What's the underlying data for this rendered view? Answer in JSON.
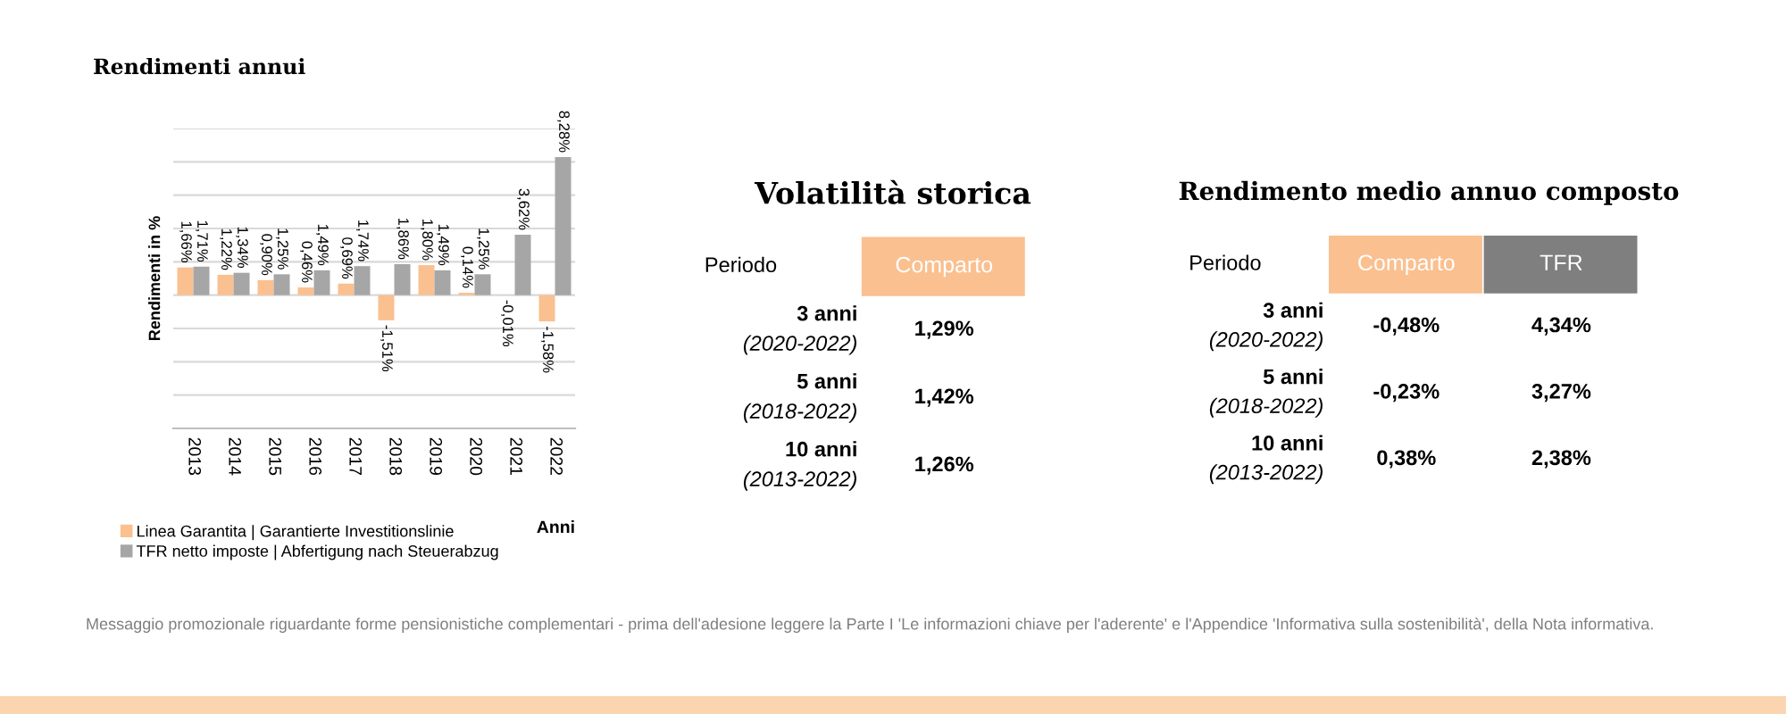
{
  "chart_data": [
    {
      "type": "bar",
      "title": "Rendimenti annui",
      "xlabel": "Anni",
      "ylabel": "Rendimenti in %",
      "categories": [
        "2013",
        "2014",
        "2015",
        "2016",
        "2017",
        "2018",
        "2019",
        "2020",
        "2021",
        "2022"
      ],
      "series": [
        {
          "name": "Linea Garantita | Garantierte Investitionslinie",
          "color": "#fac090",
          "values": [
            1.66,
            1.22,
            0.9,
            0.46,
            0.69,
            -1.51,
            1.8,
            0.14,
            -0.01,
            -1.58
          ],
          "value_labels": [
            "1,66%",
            "1,22%",
            "0,90%",
            "0,46%",
            "0,69%",
            "-1,51%",
            "1,80%",
            "0,14%",
            "-0,01%",
            "-1,58%"
          ]
        },
        {
          "name": "TFR netto imposte | Abfertigung nach Steuerabzug",
          "color": "#a6a6a6",
          "values": [
            1.71,
            1.34,
            1.25,
            1.49,
            1.74,
            1.86,
            1.49,
            1.25,
            3.62,
            8.28
          ],
          "value_labels": [
            "1,71%",
            "1,34%",
            "1,25%",
            "1,49%",
            "1,74%",
            "1,86%",
            "1,49%",
            "1,25%",
            "3,62%",
            "8,28%"
          ]
        }
      ],
      "ylim": [
        -8,
        10
      ],
      "yticks": [
        {
          "value": -8,
          "label": null
        },
        {
          "value": -6,
          "label": null
        },
        {
          "value": -4,
          "label": null
        },
        {
          "value": -2,
          "label": null
        },
        {
          "value": 0,
          "label": null
        },
        {
          "value": 2,
          "label": null
        },
        {
          "value": 4,
          "label": null
        },
        {
          "value": 6,
          "label": null
        },
        {
          "value": 8,
          "label": null
        },
        {
          "value": 10,
          "label": null
        }
      ],
      "grid": "y",
      "legend": "bottom",
      "tick_labels": "x",
      "annotations": [
        "Messaggio promozionale riguardante forme pensionistiche complementari - prima dell'adesione leggere la Parte I 'Le informazioni chiave per l'aderente' e l'Appendice 'Informativa sulla sostenibilità', della Nota informativa."
      ]
    },
    {
      "type": "other",
      "title": "Volatilità storica",
      "xlabel": "Periodo",
      "categories": [
        "3 anni\n(2020-2022)",
        "5 anni\n(2018-2022)",
        "10 anni\n(2013-2022)"
      ],
      "series": [
        {
          "name": "Comparto",
          "values": [
            1.29,
            1.42,
            1.26
          ],
          "value_labels": [
            "1,29%",
            "1,42%",
            "1,26%"
          ]
        }
      ]
    },
    {
      "type": "other",
      "title": "Rendimento medio annuo composto",
      "xlabel": "Periodo",
      "categories": [
        "3 anni\n(2020-2022)",
        "5 anni\n(2018-2022)",
        "10 anni\n(2013-2022)"
      ],
      "series": [
        {
          "name": "Comparto",
          "values": [
            -0.48,
            -0.23,
            0.38
          ],
          "value_labels": [
            "-0,48%",
            "-0,23%",
            "0,38%"
          ]
        },
        {
          "name": "TFR",
          "values": [
            4.34,
            3.27,
            2.38
          ],
          "value_labels": [
            "4,34%",
            "3,27%",
            "2,38%"
          ]
        }
      ]
    }
  ]
}
